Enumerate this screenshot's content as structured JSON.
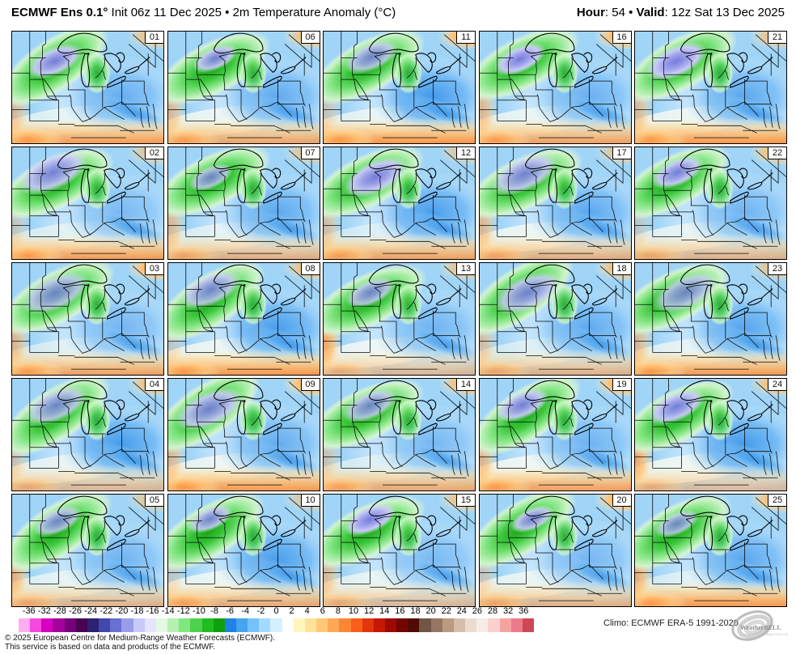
{
  "header_left": {
    "bold": "ECMWF Ens 0.1°",
    "rest": " Init 06z 11 Dec 2025 • 2m Temperature Anomaly (°C)"
  },
  "header_right": {
    "hour_label": "Hour",
    "hour_rest": ": 54",
    "sep": " • ",
    "valid_label": "Valid",
    "valid_rest": ": 12z Sat 13 Dec 2025"
  },
  "panels": {
    "rows": [
      [
        "01",
        "06",
        "11",
        "16",
        "21"
      ],
      [
        "02",
        "07",
        "12",
        "17",
        "22"
      ],
      [
        "03",
        "08",
        "13",
        "18",
        "23"
      ],
      [
        "04",
        "09",
        "14",
        "19",
        "24"
      ],
      [
        "05",
        "10",
        "15",
        "20",
        "25"
      ]
    ]
  },
  "colorbar": {
    "ticks": [
      "-36",
      "-32",
      "-28",
      "-26",
      "-24",
      "-22",
      "-20",
      "-18",
      "-16",
      "-14",
      "-12",
      "-10",
      "-8",
      "-6",
      "-4",
      "-2",
      "0",
      "2",
      "4",
      "6",
      "8",
      "10",
      "12",
      "14",
      "16",
      "18",
      "20",
      "22",
      "24",
      "26",
      "28",
      "32",
      "36"
    ],
    "colors": [
      "#ffadf2",
      "#f648de",
      "#d800c0",
      "#a4009c",
      "#74007a",
      "#480452",
      "#2d2173",
      "#4248aa",
      "#6a70d2",
      "#989cea",
      "#c8caf8",
      "#e4e5fd",
      "#e6f8e3",
      "#b4f0b0",
      "#80e680",
      "#4cd24c",
      "#22bc22",
      "#0fa00f",
      "#1e82e6",
      "#46a4f0",
      "#74c2fa",
      "#a4daff",
      "#d4efff",
      "#ffffff",
      "#fff6bc",
      "#ffe29a",
      "#ffc878",
      "#ffa856",
      "#ff8634",
      "#fa5e1c",
      "#e4360c",
      "#c61604",
      "#9c0a02",
      "#720600",
      "#500c04",
      "#705646",
      "#967662",
      "#ba9a80",
      "#d6bfaa",
      "#ecdccf",
      "#f6ece8",
      "#fbd0ce",
      "#f5a4a0",
      "#ec7a8a",
      "#cc4858"
    ],
    "climo": "Climo: ECMWF ERA-5 1991-2020"
  },
  "logo": {
    "text": "WeatherBELL",
    "sub": "ANALYTICS LLC"
  },
  "footer": {
    "line1": "© 2025 European Centre for Medium-Range Weather Forecasts (ECMWF).",
    "line2": "This service is based on data and products of the ECMWF."
  }
}
